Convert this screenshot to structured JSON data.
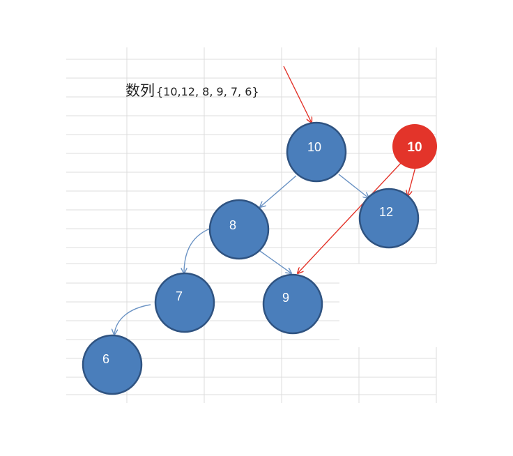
{
  "title": {
    "word": "数列",
    "values": "{10,12, 8, 9, 7, 6}"
  },
  "colors": {
    "node_fill": "#4a7ebb",
    "node_stroke": "#2f5381",
    "edge": "#6b93c4",
    "insert_fill": "#e3342a",
    "insert_edge": "#e3342a",
    "grid": "#dcdcdc"
  },
  "tree": {
    "nodes": [
      {
        "id": "n10",
        "label": "10"
      },
      {
        "id": "n12",
        "label": "12"
      },
      {
        "id": "n8",
        "label": "8"
      },
      {
        "id": "n9",
        "label": "9"
      },
      {
        "id": "n7",
        "label": "7"
      },
      {
        "id": "n6",
        "label": "6"
      }
    ],
    "edges": [
      {
        "from": "n10",
        "to": "n8"
      },
      {
        "from": "n10",
        "to": "n12"
      },
      {
        "from": "n8",
        "to": "n7"
      },
      {
        "from": "n8",
        "to": "n9"
      },
      {
        "from": "n7",
        "to": "n6"
      }
    ]
  },
  "insert": {
    "label": "10"
  }
}
